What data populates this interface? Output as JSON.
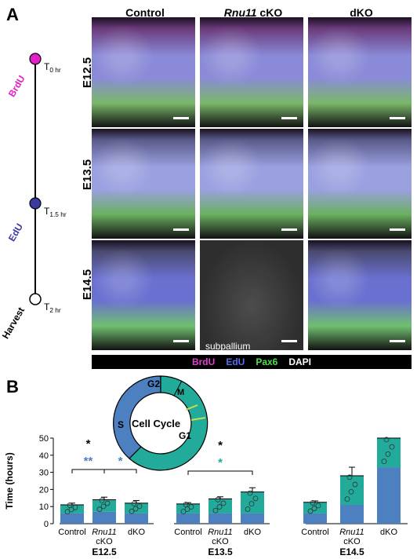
{
  "panel_a": {
    "letter": "A",
    "columns": [
      {
        "label": "Control",
        "italic_part": ""
      },
      {
        "label": " cKO",
        "italic_part": "Rnu11"
      },
      {
        "label": "dKO",
        "italic_part": ""
      }
    ],
    "rows": [
      "E12.5",
      "E13.5",
      "E14.5"
    ],
    "subpallium_label": "subpallium",
    "timeline": {
      "points": [
        {
          "name": "BrdU",
          "time_main": "T",
          "time_sub": "0 hr",
          "color": "#e020c8"
        },
        {
          "name": "EdU",
          "time_main": "T",
          "time_sub": "1.5 hr",
          "color": "#3a3aa0"
        },
        {
          "name": "Harvest",
          "time_main": "T",
          "time_sub": "2 hr",
          "color": "#ffffff"
        }
      ]
    },
    "legend": [
      {
        "text": "BrdU",
        "color": "#e040d0"
      },
      {
        "text": "EdU",
        "color": "#5a6cf0"
      },
      {
        "text": "Pax6",
        "color": "#50e050"
      },
      {
        "text": "DAPI",
        "color": "#ffffff"
      }
    ]
  },
  "panel_b": {
    "letter": "B",
    "cell_cycle": {
      "title": "Cell Cycle",
      "phases": [
        "G2",
        "M",
        "G1",
        "S"
      ],
      "colors": {
        "s": "#4d80c0",
        "g": "#22aa9a"
      }
    },
    "chart_data": {
      "type": "bar",
      "ylabel": "Time (hours)",
      "ylim": [
        0,
        50
      ],
      "yticks": [
        0,
        10,
        20,
        30,
        40,
        50
      ],
      "groups": [
        {
          "stage": "E12.5",
          "categories": [
            "Control",
            "Rnu11 cKO",
            "dKO"
          ],
          "s_phase": [
            6,
            7,
            6
          ],
          "total": [
            11,
            14,
            12
          ],
          "error": [
            1,
            1.5,
            1.5
          ]
        },
        {
          "stage": "E13.5",
          "categories": [
            "Control",
            "Rnu11 cKO",
            "dKO"
          ],
          "s_phase": [
            6,
            6,
            6
          ],
          "total": [
            11.5,
            14.5,
            18.5
          ],
          "error": [
            0.8,
            1.2,
            2.5
          ]
        },
        {
          "stage": "E14.5",
          "categories": [
            "Control",
            "Rnu11 cKO",
            "dKO"
          ],
          "s_phase": [
            6,
            11,
            33
          ],
          "total": [
            12.5,
            28,
            50
          ],
          "error": [
            0.8,
            5,
            8
          ]
        }
      ],
      "significance": [
        {
          "group": 0,
          "from": 0,
          "to": 1,
          "marks": [
            {
              "text": "*",
              "color": "#000000"
            },
            {
              "text": "**",
              "color": "#4d80c0"
            }
          ]
        },
        {
          "group": 0,
          "from": 1,
          "to": 2,
          "marks": [
            {
              "text": "*",
              "color": "#4d80c0"
            }
          ]
        },
        {
          "group": 1,
          "from": 0,
          "to": 2,
          "marks": [
            {
              "text": "*",
              "color": "#000000"
            },
            {
              "text": "*",
              "color": "#22aa9a"
            }
          ]
        },
        {
          "group": 2,
          "from": 0,
          "to": 2,
          "marks": [
            {
              "text": "*",
              "color": "#000000"
            }
          ]
        },
        {
          "group": 2,
          "from": 1,
          "to": 2,
          "marks": [
            {
              "text": "*",
              "color": "#000000"
            },
            {
              "text": "*",
              "color": "#22aa9a"
            }
          ]
        }
      ]
    }
  }
}
